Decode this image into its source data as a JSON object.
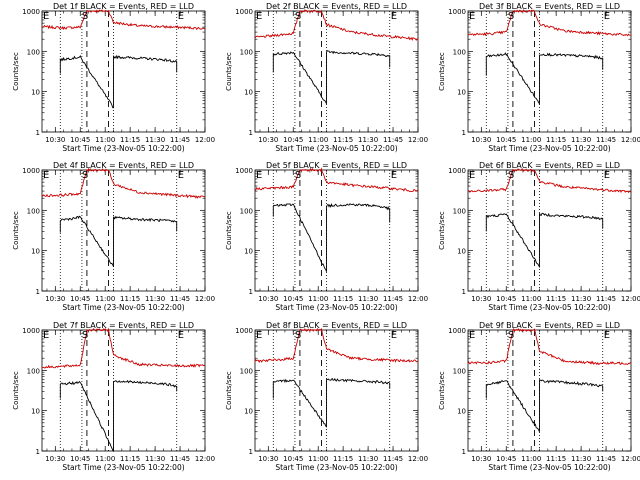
{
  "figure": {
    "background": "#ffffff",
    "events_color": "#000000",
    "lld_color": "#cc0000",
    "markers": {
      "start": "S",
      "end": "E"
    }
  },
  "chart_data": [
    {
      "type": "line",
      "title": "Det 1f BLACK = Events, RED = LLD",
      "xlabel": "Start Time (23-Nov-05 10:22:00)",
      "ylabel": "Counts/sec",
      "yscale": "log",
      "ylim": [
        1,
        1000
      ],
      "xlim": [
        "10:22",
        "12:00"
      ],
      "yticks": [
        "1",
        "10",
        "100",
        "1000"
      ],
      "xticks": [
        "10:30",
        "10:45",
        "11:00",
        "11:15",
        "11:30",
        "11:45",
        "12:00"
      ],
      "dotted_lines": [
        "10:33",
        "10:46",
        "11:05",
        "11:43"
      ],
      "dashed_lines": [
        "10:49",
        "11:02"
      ],
      "series": [
        {
          "name": "LLD",
          "color": "#cc0000",
          "x": [
            "10:22",
            "10:35",
            "10:45",
            "10:49",
            "11:02",
            "11:05",
            "11:20",
            "11:40",
            "12:00"
          ],
          "y": [
            410,
            380,
            400,
            1000,
            1000,
            520,
            430,
            400,
            370
          ]
        },
        {
          "name": "Events",
          "color": "#000000",
          "x": [
            "10:33",
            "10:33",
            "10:40",
            "10:45",
            "11:05",
            "11:05",
            "11:20",
            "11:35",
            "11:43",
            "11:43"
          ],
          "y": [
            28,
            62,
            68,
            72,
            4,
            73,
            68,
            62,
            55,
            30
          ]
        }
      ]
    },
    {
      "type": "line",
      "title": "Det 2f BLACK = Events, RED = LLD",
      "xlabel": "Start Time (23-Nov-05 10:22:00)",
      "ylabel": "Counts/sec",
      "yscale": "log",
      "ylim": [
        1,
        1000
      ],
      "xlim": [
        "10:22",
        "12:00"
      ],
      "yticks": [
        "1",
        "10",
        "100",
        "1000"
      ],
      "xticks": [
        "10:30",
        "10:45",
        "11:00",
        "11:15",
        "11:30",
        "11:45",
        "12:00"
      ],
      "dotted_lines": [
        "10:33",
        "10:46",
        "11:05",
        "11:43"
      ],
      "dashed_lines": [
        "10:49",
        "11:02"
      ],
      "series": [
        {
          "name": "LLD",
          "color": "#cc0000",
          "x": [
            "10:22",
            "10:35",
            "10:45",
            "10:49",
            "11:02",
            "11:05",
            "11:20",
            "11:40",
            "12:00"
          ],
          "y": [
            220,
            250,
            280,
            1000,
            1000,
            460,
            300,
            240,
            200
          ]
        },
        {
          "name": "Events",
          "color": "#000000",
          "x": [
            "10:33",
            "10:33",
            "10:40",
            "10:45",
            "11:05",
            "11:05",
            "11:20",
            "11:35",
            "11:43",
            "11:43"
          ],
          "y": [
            30,
            85,
            90,
            95,
            5,
            98,
            90,
            85,
            78,
            40
          ]
        }
      ]
    },
    {
      "type": "line",
      "title": "Det 3f BLACK = Events, RED = LLD",
      "xlabel": "Start Time (23-Nov-05 10:22:00)",
      "ylabel": "Counts/sec",
      "yscale": "log",
      "ylim": [
        1,
        1000
      ],
      "xlim": [
        "10:22",
        "12:00"
      ],
      "yticks": [
        "1",
        "10",
        "100",
        "1000"
      ],
      "xticks": [
        "10:30",
        "10:45",
        "11:00",
        "11:15",
        "11:30",
        "11:45",
        "12:00"
      ],
      "dotted_lines": [
        "10:33",
        "10:46",
        "11:05",
        "11:43"
      ],
      "dashed_lines": [
        "10:49",
        "11:02"
      ],
      "series": [
        {
          "name": "LLD",
          "color": "#cc0000",
          "x": [
            "10:22",
            "10:35",
            "10:45",
            "10:49",
            "11:02",
            "11:05",
            "11:20",
            "11:40",
            "12:00"
          ],
          "y": [
            260,
            270,
            300,
            1000,
            1000,
            470,
            320,
            280,
            250
          ]
        },
        {
          "name": "Events",
          "color": "#000000",
          "x": [
            "10:33",
            "10:33",
            "10:40",
            "10:45",
            "11:05",
            "11:05",
            "11:20",
            "11:35",
            "11:43",
            "11:43"
          ],
          "y": [
            25,
            75,
            80,
            85,
            5,
            85,
            80,
            75,
            68,
            35
          ]
        }
      ]
    },
    {
      "type": "line",
      "title": "Det 4f BLACK = Events, RED = LLD",
      "xlabel": "Start Time (23-Nov-05 10:22:00)",
      "ylabel": "Counts/sec",
      "yscale": "log",
      "ylim": [
        1,
        1000
      ],
      "xlim": [
        "10:22",
        "12:00"
      ],
      "yticks": [
        "1",
        "10",
        "100",
        "1000"
      ],
      "xticks": [
        "10:30",
        "10:45",
        "11:00",
        "11:15",
        "11:30",
        "11:45",
        "12:00"
      ],
      "dotted_lines": [
        "10:33",
        "10:46",
        "11:05",
        "11:43"
      ],
      "dashed_lines": [
        "10:49",
        "11:02"
      ],
      "series": [
        {
          "name": "LLD",
          "color": "#cc0000",
          "x": [
            "10:22",
            "10:35",
            "10:45",
            "10:49",
            "11:02",
            "11:05",
            "11:20",
            "11:40",
            "12:00"
          ],
          "y": [
            230,
            240,
            260,
            1000,
            1000,
            450,
            280,
            240,
            210
          ]
        },
        {
          "name": "Events",
          "color": "#000000",
          "x": [
            "10:33",
            "10:33",
            "10:40",
            "10:45",
            "11:05",
            "11:05",
            "11:20",
            "11:35",
            "11:43",
            "11:43"
          ],
          "y": [
            28,
            58,
            62,
            68,
            4,
            66,
            60,
            56,
            52,
            30
          ]
        }
      ]
    },
    {
      "type": "line",
      "title": "Det 5f BLACK = Events, RED = LLD",
      "xlabel": "Start Time (23-Nov-05 10:22:00)",
      "ylabel": "Counts/sec",
      "yscale": "log",
      "ylim": [
        1,
        1000
      ],
      "xlim": [
        "10:22",
        "12:00"
      ],
      "yticks": [
        "1",
        "10",
        "100",
        "1000"
      ],
      "xticks": [
        "10:30",
        "10:45",
        "11:00",
        "11:15",
        "11:30",
        "11:45",
        "12:00"
      ],
      "dotted_lines": [
        "10:33",
        "10:46",
        "11:05",
        "11:43"
      ],
      "dashed_lines": [
        "10:49",
        "11:02"
      ],
      "series": [
        {
          "name": "LLD",
          "color": "#cc0000",
          "x": [
            "10:22",
            "10:35",
            "10:45",
            "10:49",
            "11:02",
            "11:05",
            "11:20",
            "11:40",
            "12:00"
          ],
          "y": [
            340,
            360,
            380,
            1000,
            1000,
            500,
            420,
            360,
            300
          ]
        },
        {
          "name": "Events",
          "color": "#000000",
          "x": [
            "10:33",
            "10:33",
            "10:40",
            "10:45",
            "11:05",
            "11:05",
            "11:20",
            "11:35",
            "11:43",
            "11:43"
          ],
          "y": [
            70,
            130,
            135,
            140,
            3,
            130,
            140,
            130,
            110,
            50
          ]
        }
      ]
    },
    {
      "type": "line",
      "title": "Det 6f BLACK = Events, RED = LLD",
      "xlabel": "Start Time (23-Nov-05 10:22:00)",
      "ylabel": "Counts/sec",
      "yscale": "log",
      "ylim": [
        1,
        1000
      ],
      "xlim": [
        "10:22",
        "12:00"
      ],
      "yticks": [
        "1",
        "10",
        "100",
        "1000"
      ],
      "xticks": [
        "10:30",
        "10:45",
        "11:00",
        "11:15",
        "11:30",
        "11:45",
        "12:00"
      ],
      "dotted_lines": [
        "10:33",
        "10:46",
        "11:05",
        "11:43"
      ],
      "dashed_lines": [
        "10:49",
        "11:02"
      ],
      "series": [
        {
          "name": "LLD",
          "color": "#cc0000",
          "x": [
            "10:22",
            "10:35",
            "10:45",
            "10:49",
            "11:02",
            "11:05",
            "11:20",
            "11:40",
            "12:00"
          ],
          "y": [
            290,
            310,
            330,
            1000,
            1000,
            520,
            380,
            330,
            290
          ]
        },
        {
          "name": "Events",
          "color": "#000000",
          "x": [
            "10:33",
            "10:33",
            "10:40",
            "10:45",
            "11:05",
            "11:05",
            "11:20",
            "11:35",
            "11:43",
            "11:43"
          ],
          "y": [
            30,
            70,
            75,
            80,
            4,
            80,
            72,
            68,
            62,
            35
          ]
        }
      ]
    },
    {
      "type": "line",
      "title": "Det 7f BLACK = Events, RED = LLD",
      "xlabel": "Start Time (23-Nov-05 10:22:00)",
      "ylabel": "Counts/sec",
      "yscale": "log",
      "ylim": [
        1,
        1000
      ],
      "xlim": [
        "10:22",
        "12:00"
      ],
      "yticks": [
        "1",
        "10",
        "100",
        "1000"
      ],
      "xticks": [
        "10:30",
        "10:45",
        "11:00",
        "11:15",
        "11:30",
        "11:45",
        "12:00"
      ],
      "dotted_lines": [
        "10:33",
        "10:46",
        "11:05",
        "11:43"
      ],
      "dashed_lines": [
        "10:49",
        "11:02"
      ],
      "series": [
        {
          "name": "LLD",
          "color": "#cc0000",
          "x": [
            "10:22",
            "10:35",
            "10:45",
            "10:49",
            "11:02",
            "11:05",
            "11:20",
            "11:40",
            "12:00"
          ],
          "y": [
            120,
            125,
            135,
            1000,
            1000,
            240,
            140,
            130,
            130
          ]
        },
        {
          "name": "Events",
          "color": "#000000",
          "x": [
            "10:33",
            "10:33",
            "10:40",
            "10:45",
            "11:05",
            "11:05",
            "11:20",
            "11:35",
            "11:43",
            "11:43"
          ],
          "y": [
            20,
            45,
            48,
            50,
            1,
            55,
            50,
            47,
            40,
            30
          ]
        }
      ]
    },
    {
      "type": "line",
      "title": "Det 8f BLACK = Events, RED = LLD",
      "xlabel": "Start Time (23-Nov-05 10:22:00)",
      "ylabel": "Counts/sec",
      "yscale": "log",
      "ylim": [
        1,
        1000
      ],
      "xlim": [
        "10:22",
        "12:00"
      ],
      "yticks": [
        "1",
        "10",
        "100",
        "1000"
      ],
      "xticks": [
        "10:30",
        "10:45",
        "11:00",
        "11:15",
        "11:30",
        "11:45",
        "12:00"
      ],
      "dotted_lines": [
        "10:33",
        "10:46",
        "11:05",
        "11:43"
      ],
      "dashed_lines": [
        "10:49",
        "11:02"
      ],
      "series": [
        {
          "name": "LLD",
          "color": "#cc0000",
          "x": [
            "10:22",
            "10:35",
            "10:45",
            "10:49",
            "11:02",
            "11:05",
            "11:20",
            "11:40",
            "12:00"
          ],
          "y": [
            170,
            180,
            200,
            1000,
            1000,
            340,
            200,
            180,
            170
          ]
        },
        {
          "name": "Events",
          "color": "#000000",
          "x": [
            "10:33",
            "10:33",
            "10:40",
            "10:45",
            "11:05",
            "11:05",
            "11:20",
            "11:35",
            "11:43",
            "11:43"
          ],
          "y": [
            20,
            50,
            55,
            58,
            4,
            60,
            55,
            52,
            48,
            35
          ]
        }
      ]
    },
    {
      "type": "line",
      "title": "Det 9f BLACK = Events, RED = LLD",
      "xlabel": "Start Time (23-Nov-05 10:22:00)",
      "ylabel": "Counts/sec",
      "yscale": "log",
      "ylim": [
        1,
        1000
      ],
      "xlim": [
        "10:22",
        "12:00"
      ],
      "yticks": [
        "1",
        "10",
        "100",
        "1000"
      ],
      "xticks": [
        "10:30",
        "10:45",
        "11:00",
        "11:15",
        "11:30",
        "11:45",
        "12:00"
      ],
      "dotted_lines": [
        "10:33",
        "10:46",
        "11:05",
        "11:43"
      ],
      "dashed_lines": [
        "10:49",
        "11:02"
      ],
      "series": [
        {
          "name": "LLD",
          "color": "#cc0000",
          "x": [
            "10:22",
            "10:35",
            "10:45",
            "10:49",
            "11:02",
            "11:05",
            "11:20",
            "11:40",
            "12:00"
          ],
          "y": [
            150,
            155,
            170,
            1000,
            1000,
            300,
            170,
            150,
            150
          ]
        },
        {
          "name": "Events",
          "color": "#000000",
          "x": [
            "10:33",
            "10:33",
            "10:40",
            "10:45",
            "11:05",
            "11:05",
            "11:20",
            "11:35",
            "11:43",
            "11:43"
          ],
          "y": [
            20,
            45,
            50,
            55,
            3,
            55,
            50,
            45,
            40,
            30
          ]
        }
      ]
    }
  ]
}
